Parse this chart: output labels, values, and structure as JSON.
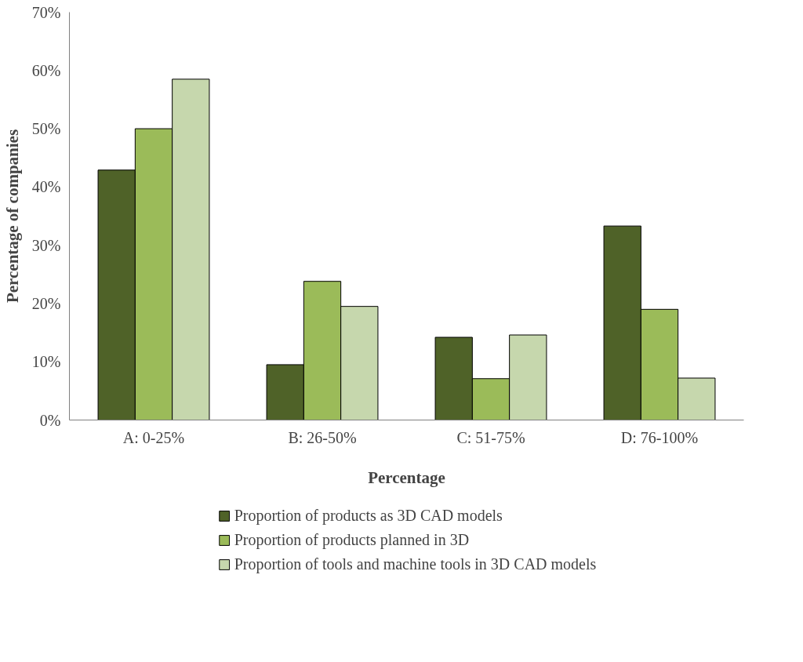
{
  "chart_data": {
    "type": "bar",
    "xlabel": "Percentage",
    "ylabel": "Percentage of companies",
    "categories": [
      "A: 0-25%",
      "B: 26-50%",
      "C: 51-75%",
      "D: 76-100%"
    ],
    "series": [
      {
        "name": "Proportion of products as 3D CAD models",
        "color": "#4f6228",
        "values": [
          42.9,
          9.5,
          14.2,
          33.3
        ]
      },
      {
        "name": "Proportion of products planned in 3D",
        "color": "#9bbb59",
        "values": [
          50.0,
          23.8,
          7.1,
          19.0
        ]
      },
      {
        "name": "Proportion of tools and machine tools in 3D CAD models",
        "color": "#c6d7ad",
        "values": [
          58.5,
          19.5,
          14.6,
          7.2
        ]
      }
    ],
    "ylim": [
      0,
      70
    ],
    "yticks": [
      {
        "value": 0,
        "label": "0%"
      },
      {
        "value": 10,
        "label": "10%"
      },
      {
        "value": 20,
        "label": "20%"
      },
      {
        "value": 30,
        "label": "30%"
      },
      {
        "value": 40,
        "label": "40%"
      },
      {
        "value": 50,
        "label": "50%"
      },
      {
        "value": 60,
        "label": "60%"
      },
      {
        "value": 70,
        "label": "70%"
      }
    ],
    "grid": false,
    "legend": "bottom"
  }
}
